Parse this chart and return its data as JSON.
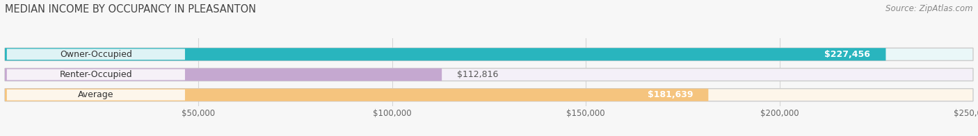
{
  "title": "MEDIAN INCOME BY OCCUPANCY IN PLEASANTON",
  "source": "Source: ZipAtlas.com",
  "categories": [
    "Owner-Occupied",
    "Renter-Occupied",
    "Average"
  ],
  "values": [
    227456,
    112816,
    181639
  ],
  "labels": [
    "$227,456",
    "$112,816",
    "$181,639"
  ],
  "bar_colors": [
    "#29b5be",
    "#c5a8d0",
    "#f5c47e"
  ],
  "bar_bg_colors": [
    "#eaf7f8",
    "#f4f0f8",
    "#fdf6ea"
  ],
  "label_outside_color": [
    "#555555",
    "#555555",
    "#555555"
  ],
  "label_inside_color": [
    "#ffffff",
    "#ffffff",
    "#ffffff"
  ],
  "xlim": [
    0,
    250000
  ],
  "xticks": [
    50000,
    100000,
    150000,
    200000,
    250000
  ],
  "xticklabels": [
    "$50,000",
    "$100,000",
    "$150,000",
    "$200,000",
    "$250,000"
  ],
  "title_fontsize": 10.5,
  "source_fontsize": 8.5,
  "tick_fontsize": 8.5,
  "bar_label_fontsize": 9,
  "cat_fontsize": 9,
  "background_color": "#f7f7f7",
  "bar_height": 0.62
}
